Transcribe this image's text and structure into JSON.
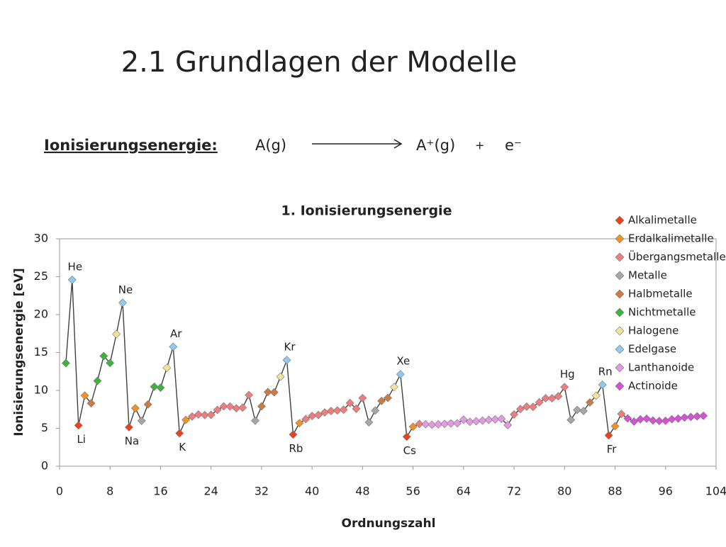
{
  "header": {
    "title": "2.1 Grundlagen der Modelle",
    "label": "Ionisierungsenergie:",
    "reactant": "A(g)",
    "product": "A⁺(g)",
    "plus": "+",
    "electron": "e⁻"
  },
  "chart_data": {
    "type": "line",
    "title": "1. Ionisierungsenergie",
    "xlabel": "Ordnungszahl",
    "ylabel": "Ionisierungsenergie [eV]",
    "xlim": [
      0,
      104
    ],
    "ylim": [
      0,
      30
    ],
    "xticks": [
      0,
      8,
      16,
      24,
      32,
      40,
      48,
      56,
      64,
      72,
      80,
      88,
      96,
      104
    ],
    "yticks": [
      0,
      5,
      10,
      15,
      20,
      25,
      30
    ],
    "line_color": "#404040",
    "legend": "right",
    "series": [
      {
        "name": "Alkalimetalle",
        "color": "#e8431a",
        "x": [
          3,
          11,
          19,
          37,
          55,
          87
        ],
        "values": [
          5.39,
          5.14,
          4.34,
          4.18,
          3.89,
          4.07
        ]
      },
      {
        "name": "Erdalkalimetalle",
        "color": "#f39224",
        "x": [
          4,
          12,
          20,
          38,
          56,
          88
        ],
        "values": [
          9.32,
          7.65,
          6.11,
          5.69,
          5.21,
          5.28
        ]
      },
      {
        "name": "Übergangsmetalle",
        "color": "#ee7e7e",
        "x": [
          21,
          22,
          23,
          24,
          25,
          26,
          27,
          28,
          29,
          30,
          39,
          40,
          41,
          42,
          43,
          44,
          45,
          46,
          47,
          48,
          57,
          72,
          73,
          74,
          75,
          76,
          77,
          78,
          79,
          80,
          89
        ],
        "values": [
          6.56,
          6.83,
          6.75,
          6.77,
          7.43,
          7.9,
          7.88,
          7.64,
          7.73,
          9.39,
          6.22,
          6.63,
          6.76,
          7.09,
          7.28,
          7.36,
          7.46,
          8.34,
          7.58,
          8.99,
          5.58,
          6.83,
          7.55,
          7.86,
          7.83,
          8.44,
          8.97,
          8.96,
          9.23,
          10.44,
          6.9
        ]
      },
      {
        "name": "Metalle",
        "color": "#a6a6a6",
        "x": [
          13,
          31,
          49,
          50,
          81,
          82,
          83
        ],
        "values": [
          5.99,
          6.0,
          5.79,
          7.34,
          6.11,
          7.42,
          7.29
        ]
      },
      {
        "name": "Halbmetalle",
        "color": "#c97c43",
        "x": [
          5,
          14,
          32,
          33,
          34,
          51,
          52,
          84
        ],
        "values": [
          8.3,
          8.15,
          7.9,
          9.79,
          9.75,
          8.61,
          9.01,
          8.41
        ]
      },
      {
        "name": "Nichtmetalle",
        "color": "#3cb43c",
        "x": [
          1,
          6,
          7,
          8,
          15,
          16
        ],
        "values": [
          13.6,
          11.26,
          14.53,
          13.62,
          10.49,
          10.36
        ]
      },
      {
        "name": "Halogene",
        "color": "#f2e49b",
        "x": [
          9,
          17,
          35,
          53,
          85
        ],
        "values": [
          17.42,
          12.97,
          11.81,
          10.45,
          9.3
        ]
      },
      {
        "name": "Edelgase",
        "color": "#8fcbf0",
        "x": [
          2,
          10,
          18,
          36,
          54,
          86
        ],
        "values": [
          24.59,
          21.56,
          15.76,
          14.0,
          12.13,
          10.75
        ]
      },
      {
        "name": "Lanthanoide",
        "color": "#e39ae3",
        "x": [
          58,
          59,
          60,
          61,
          62,
          63,
          64,
          65,
          66,
          67,
          68,
          69,
          70,
          71
        ],
        "values": [
          5.54,
          5.47,
          5.53,
          5.58,
          5.64,
          5.67,
          6.15,
          5.86,
          5.94,
          6.02,
          6.11,
          6.18,
          6.25,
          5.43
        ]
      },
      {
        "name": "Actinoide",
        "color": "#d651d6",
        "x": [
          90,
          91,
          92,
          93,
          94,
          95,
          96,
          97,
          98,
          99,
          100,
          101,
          102
        ],
        "values": [
          6.31,
          5.89,
          6.19,
          6.27,
          6.03,
          5.97,
          5.99,
          6.2,
          6.28,
          6.42,
          6.5,
          6.58,
          6.65
        ]
      }
    ],
    "annotations": [
      {
        "text": "He",
        "x": 2,
        "position": "above"
      },
      {
        "text": "Li",
        "x": 3,
        "position": "below"
      },
      {
        "text": "Ne",
        "x": 10,
        "position": "above"
      },
      {
        "text": "Na",
        "x": 11,
        "position": "below"
      },
      {
        "text": "Ar",
        "x": 18,
        "position": "above"
      },
      {
        "text": "K",
        "x": 19,
        "position": "below"
      },
      {
        "text": "Kr",
        "x": 36,
        "position": "above"
      },
      {
        "text": "Rb",
        "x": 37,
        "position": "below"
      },
      {
        "text": "Xe",
        "x": 54,
        "position": "above"
      },
      {
        "text": "Cs",
        "x": 55,
        "position": "below"
      },
      {
        "text": "Hg",
        "x": 80,
        "position": "above"
      },
      {
        "text": "Rn",
        "x": 86,
        "position": "above"
      },
      {
        "text": "Fr",
        "x": 87,
        "position": "below"
      }
    ]
  }
}
